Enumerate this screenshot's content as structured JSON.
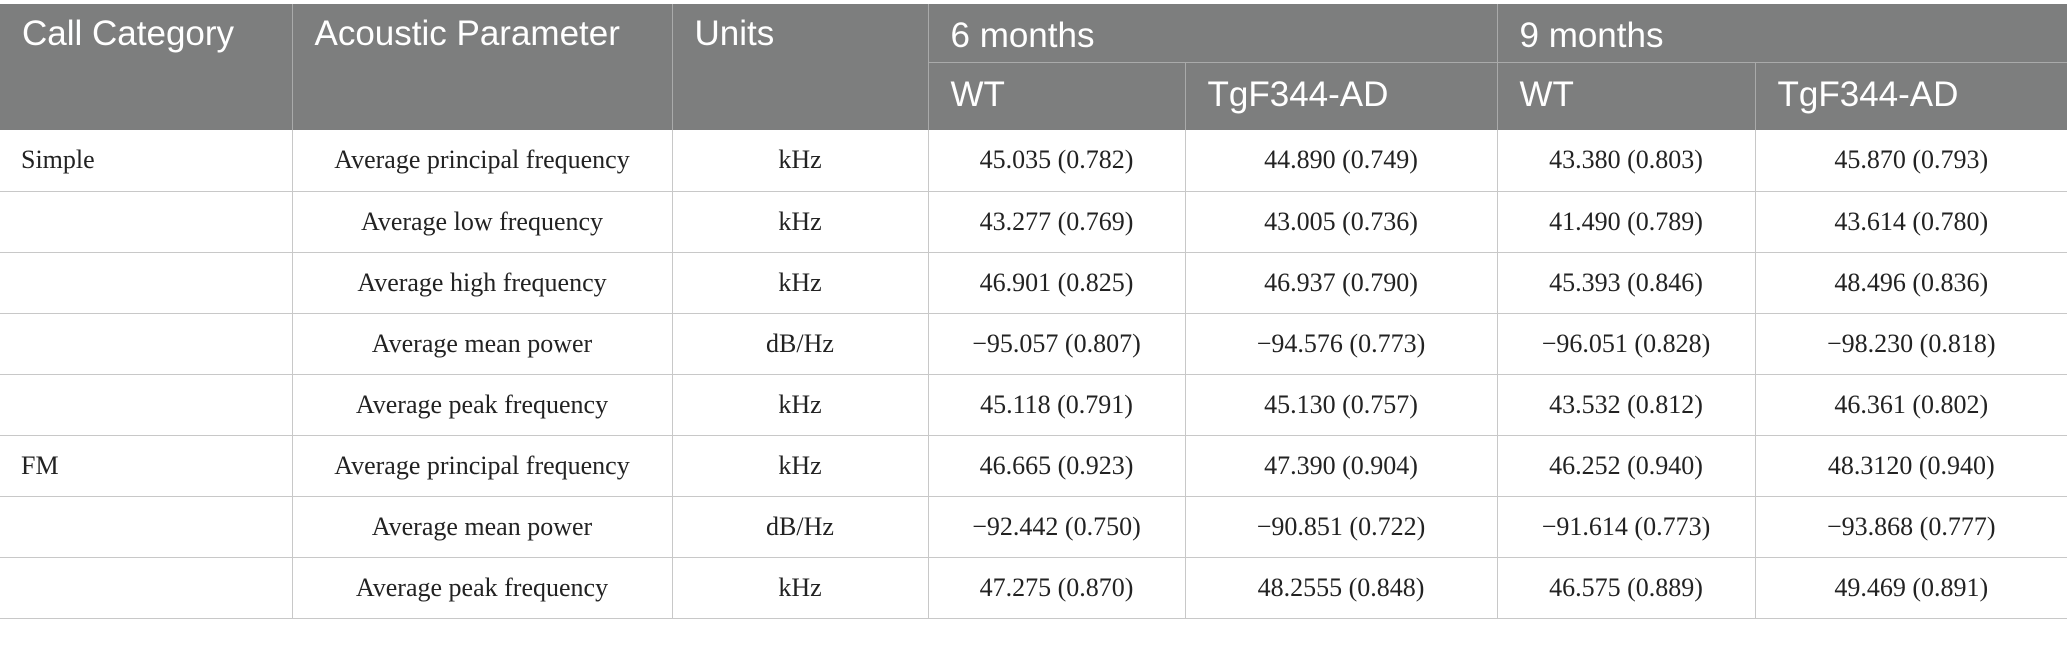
{
  "header": {
    "call_category": "Call Category",
    "acoustic_parameter": "Acoustic Parameter",
    "units": "Units",
    "group_6_months": "6 months",
    "group_9_months": "9 months",
    "wt_6": "WT",
    "tg_6": "TgF344-AD",
    "wt_9": "WT",
    "tg_9": "TgF344-AD"
  },
  "rows": [
    {
      "category": "Simple",
      "parameter": "Average principal frequency",
      "units": "kHz",
      "wt6": "45.035 (0.782)",
      "tg6": "44.890 (0.749)",
      "wt9": "43.380 (0.803)",
      "tg9": "45.870 (0.793)"
    },
    {
      "category": "",
      "parameter": "Average low frequency",
      "units": "kHz",
      "wt6": "43.277 (0.769)",
      "tg6": "43.005 (0.736)",
      "wt9": "41.490 (0.789)",
      "tg9": "43.614 (0.780)"
    },
    {
      "category": "",
      "parameter": "Average high frequency",
      "units": "kHz",
      "wt6": "46.901 (0.825)",
      "tg6": "46.937 (0.790)",
      "wt9": "45.393 (0.846)",
      "tg9": "48.496 (0.836)"
    },
    {
      "category": "",
      "parameter": "Average mean power",
      "units": "dB/Hz",
      "wt6": "−95.057 (0.807)",
      "tg6": "−94.576 (0.773)",
      "wt9": "−96.051 (0.828)",
      "tg9": "−98.230 (0.818)"
    },
    {
      "category": "",
      "parameter": "Average peak frequency",
      "units": "kHz",
      "wt6": "45.118 (0.791)",
      "tg6": "45.130 (0.757)",
      "wt9": "43.532 (0.812)",
      "tg9": "46.361 (0.802)"
    },
    {
      "category": "FM",
      "parameter": "Average principal frequency",
      "units": "kHz",
      "wt6": "46.665 (0.923)",
      "tg6": "47.390 (0.904)",
      "wt9": "46.252 (0.940)",
      "tg9": "48.3120 (0.940)"
    },
    {
      "category": "",
      "parameter": "Average mean power",
      "units": "dB/Hz",
      "wt6": "−92.442 (0.750)",
      "tg6": "−90.851 (0.722)",
      "wt9": "−91.614 (0.773)",
      "tg9": "−93.868 (0.777)"
    },
    {
      "category": "",
      "parameter": "Average peak frequency",
      "units": "kHz",
      "wt6": "47.275 (0.870)",
      "tg6": "48.2555 (0.848)",
      "wt9": "46.575 (0.889)",
      "tg9": "49.469 (0.891)"
    }
  ]
}
